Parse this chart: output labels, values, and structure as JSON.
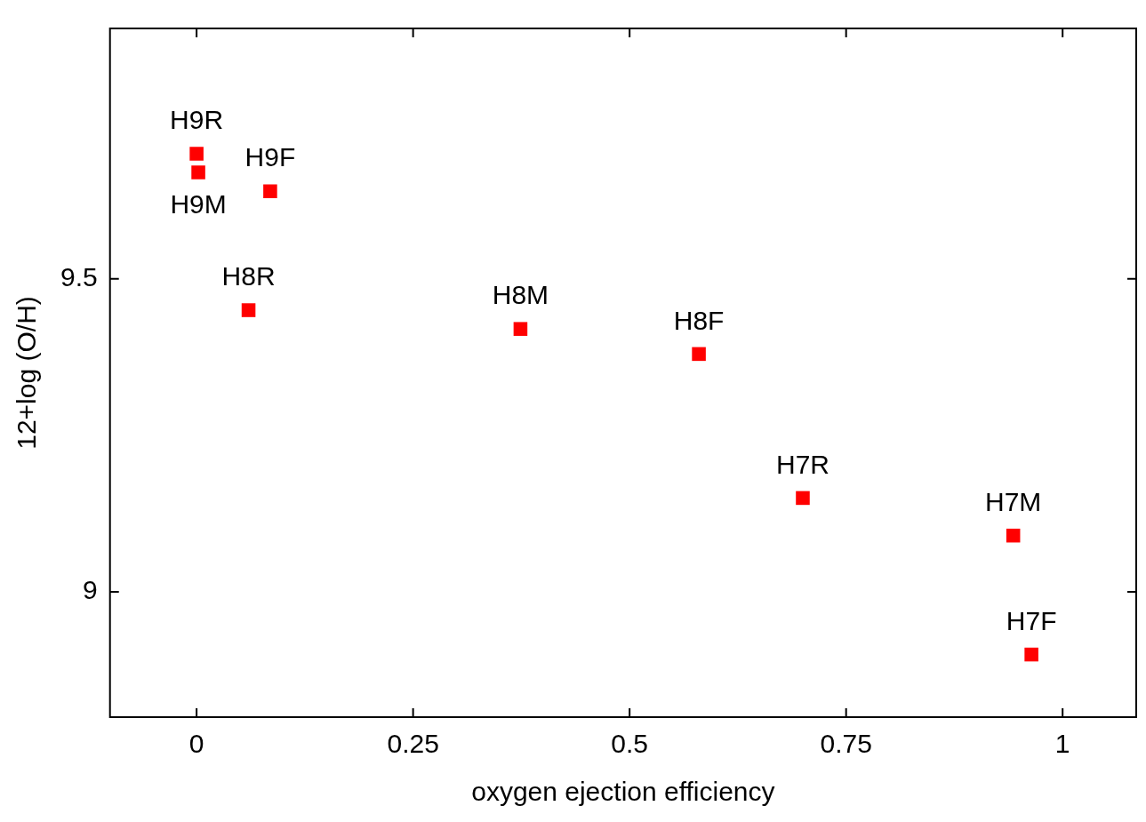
{
  "chart_data": {
    "type": "scatter",
    "xlabel": "oxygen ejection efficiency",
    "ylabel": "12+log (O/H)",
    "x": [
      0.0,
      0.002,
      0.085,
      0.06,
      0.374,
      0.58,
      0.7,
      0.943,
      0.964
    ],
    "series": [
      {
        "color": "#ff0000",
        "values": [
          9.7,
          9.67,
          9.64,
          9.45,
          9.42,
          9.38,
          9.15,
          9.09,
          8.9
        ]
      }
    ],
    "marker": "square",
    "legend": false,
    "xlim": [
      -0.1,
      1.085
    ],
    "xticks": [
      0,
      0.25,
      0.5,
      0.75,
      1
    ],
    "ylim": [
      8.8,
      9.9
    ],
    "yticks": [
      9,
      9.5
    ],
    "annotations": [
      {
        "text": "H9R",
        "x": 0.0,
        "y": 9.7
      },
      {
        "text": "H9M",
        "x": 0.002,
        "y": 9.67
      },
      {
        "text": "H9F",
        "x": 0.085,
        "y": 9.64
      },
      {
        "text": "H8R",
        "x": 0.06,
        "y": 9.45
      },
      {
        "text": "H8M",
        "x": 0.374,
        "y": 9.42
      },
      {
        "text": "H8F",
        "x": 0.58,
        "y": 9.38
      },
      {
        "text": "H7R",
        "x": 0.7,
        "y": 9.15
      },
      {
        "text": "H7M",
        "x": 0.943,
        "y": 9.09
      },
      {
        "text": "H7F",
        "x": 0.964,
        "y": 8.9
      }
    ]
  }
}
